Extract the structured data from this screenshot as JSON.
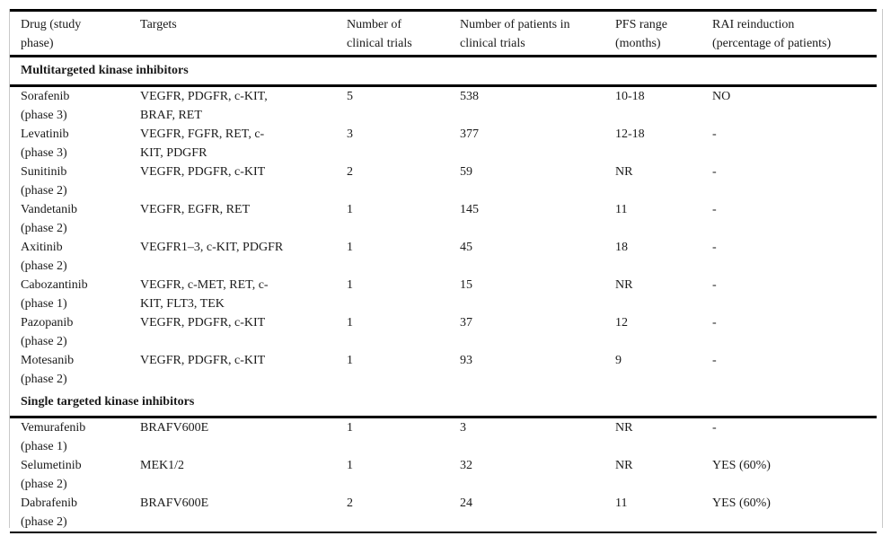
{
  "colors": {
    "text": "#1a1a1a",
    "rule": "#000000",
    "frame_border": "#c9c9c9",
    "background": "#ffffff"
  },
  "table": {
    "columns": [
      "Drug (study\nphase)",
      "Targets",
      "Number of\nclinical trials",
      "Number of patients in\nclinical trials",
      "PFS range\n(months)",
      "RAI reinduction\n(percentage of patients)"
    ],
    "sections": [
      {
        "header": "Multitargeted kinase inhibitors",
        "rows": [
          {
            "drug": "Sorafenib",
            "phase": "(phase 3)",
            "targets": "VEGFR, PDGFR, c-KIT,\nBRAF, RET",
            "trials": "5",
            "patients": "538",
            "pfs": "10-18",
            "rai": "NO"
          },
          {
            "drug": "Levatinib",
            "phase": "(phase 3)",
            "targets": "VEGFR, FGFR, RET, c-\nKIT, PDGFR",
            "trials": "3",
            "patients": "377",
            "pfs": "12-18",
            "rai": "-"
          },
          {
            "drug": "Sunitinib",
            "phase": "(phase 2)",
            "targets": "VEGFR, PDGFR, c-KIT",
            "trials": "2",
            "patients": "59",
            "pfs": "NR",
            "rai": "-"
          },
          {
            "drug": "Vandetanib",
            "phase": "(phase 2)",
            "targets": "VEGFR, EGFR, RET",
            "trials": "1",
            "patients": "145",
            "pfs": "11",
            "rai": "-"
          },
          {
            "drug": "Axitinib",
            "phase": "(phase 2)",
            "targets": "VEGFR1–3, c-KIT, PDGFR",
            "trials": "1",
            "patients": "45",
            "pfs": "18",
            "rai": "-"
          },
          {
            "drug": "Cabozantinib",
            "phase": "(phase 1)",
            "targets": "VEGFR, c-MET, RET, c-\nKIT, FLT3, TEK",
            "trials": "1",
            "patients": "15",
            "pfs": "NR",
            "rai": "-"
          },
          {
            "drug": "Pazopanib",
            "phase": "(phase 2)",
            "targets": "VEGFR, PDGFR, c-KIT",
            "trials": "1",
            "patients": "37",
            "pfs": "12",
            "rai": "-"
          },
          {
            "drug": "Motesanib",
            "phase": "(phase 2)",
            "targets": "VEGFR, PDGFR, c-KIT",
            "trials": "1",
            "patients": "93",
            "pfs": "9",
            "rai": "-"
          }
        ]
      },
      {
        "header": "Single targeted kinase inhibitors",
        "rows": [
          {
            "drug": "Vemurafenib",
            "phase": "(phase 1)",
            "targets": "BRAFV600E",
            "trials": "1",
            "patients": "3",
            "pfs": "NR",
            "rai": "-"
          },
          {
            "drug": "Selumetinib",
            "phase": "(phase 2)",
            "targets": "MEK1/2",
            "trials": "1",
            "patients": "32",
            "pfs": "NR",
            "rai": "YES (60%)"
          },
          {
            "drug": "Dabrafenib",
            "phase": "(phase 2)",
            "targets": "BRAFV600E",
            "trials": "2",
            "patients": "24",
            "pfs": "11",
            "rai": "YES (60%)"
          }
        ]
      }
    ]
  }
}
